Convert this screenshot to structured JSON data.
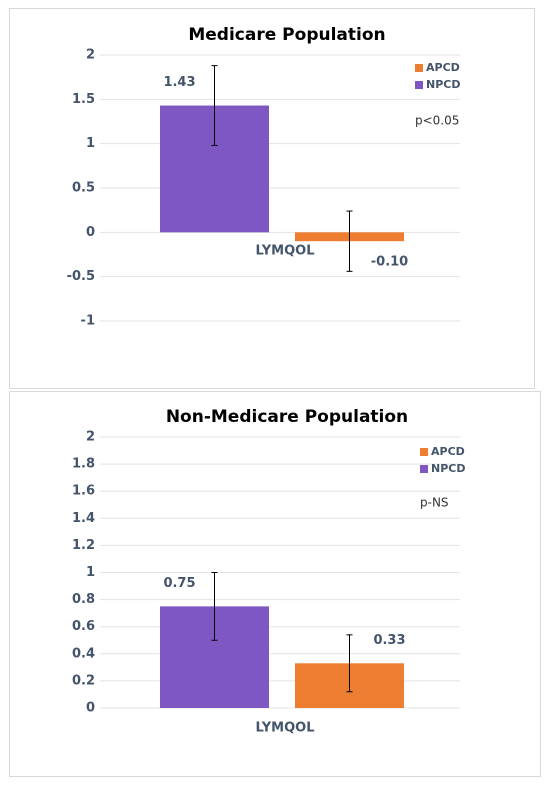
{
  "chart_data": [
    {
      "type": "bar",
      "title": "Medicare Population",
      "categories": [
        "LYMQOL"
      ],
      "series": [
        {
          "name": "NPCD",
          "color": "#7e57c2",
          "values": [
            1.43
          ],
          "errors": [
            0.45
          ]
        },
        {
          "name": "APCD",
          "color": "#ed7d31",
          "values": [
            -0.1
          ],
          "value_labels": [
            "-0.10"
          ],
          "errors": [
            0.34
          ]
        }
      ],
      "ylim": [
        -1,
        2
      ],
      "yticks": [
        -1,
        -0.5,
        0,
        0.5,
        1,
        1.5,
        2
      ],
      "grid": true,
      "annotation": "p<0.05",
      "legend": "upper right"
    },
    {
      "type": "bar",
      "title": "Non-Medicare Population",
      "categories": [
        "LYMQOL"
      ],
      "series": [
        {
          "name": "NPCD",
          "color": "#7e57c2",
          "values": [
            0.75
          ],
          "errors": [
            0.25
          ]
        },
        {
          "name": "APCD",
          "color": "#ed7d31",
          "values": [
            0.33
          ],
          "errors": [
            0.21
          ]
        }
      ],
      "ylim": [
        0,
        2
      ],
      "yticks": [
        0,
        0.2,
        0.4,
        0.6,
        0.8,
        1,
        1.2,
        1.4,
        1.6,
        1.8,
        2
      ],
      "grid": true,
      "annotation": "p-NS",
      "legend": "upper right"
    }
  ]
}
